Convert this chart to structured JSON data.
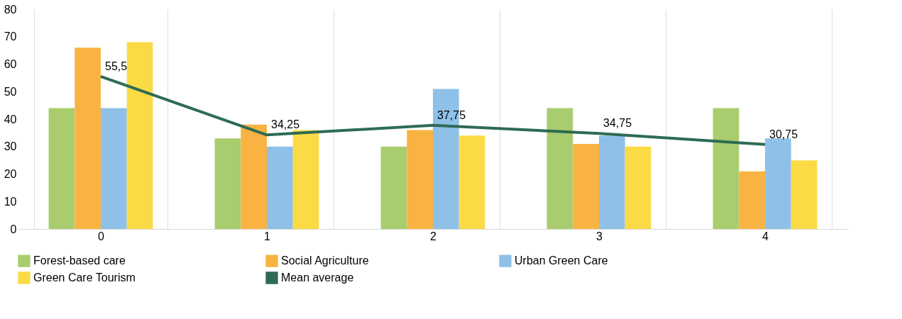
{
  "chart_data": {
    "type": "bar",
    "categories": [
      "0",
      "1",
      "2",
      "3",
      "4"
    ],
    "series": [
      {
        "name": "Forest-based care",
        "color": "#a9cd6e",
        "values": [
          44,
          33,
          30,
          44,
          44
        ]
      },
      {
        "name": "Social Agriculture",
        "color": "#f9b342",
        "values": [
          66,
          38,
          36,
          31,
          21
        ]
      },
      {
        "name": "Urban Green Care",
        "color": "#8fc1e8",
        "values": [
          44,
          30,
          51,
          34,
          33
        ]
      },
      {
        "name": "Green Care Tourism",
        "color": "#fbdb45",
        "values": [
          68,
          36,
          34,
          30,
          25
        ]
      },
      {
        "name": "Mean average",
        "type": "line",
        "color": "#2e6b55",
        "values": [
          55.5,
          34.25,
          37.75,
          34.75,
          30.75
        ],
        "value_labels": [
          "55,5",
          "34,25",
          "37,75",
          "34,75",
          "30,75"
        ],
        "marker": "none",
        "line_style": "solid"
      }
    ],
    "ylim": [
      0,
      80
    ],
    "yticks": [
      0,
      10,
      20,
      30,
      40,
      50,
      60,
      70,
      80
    ],
    "grid": "x",
    "legend": "bottom"
  }
}
